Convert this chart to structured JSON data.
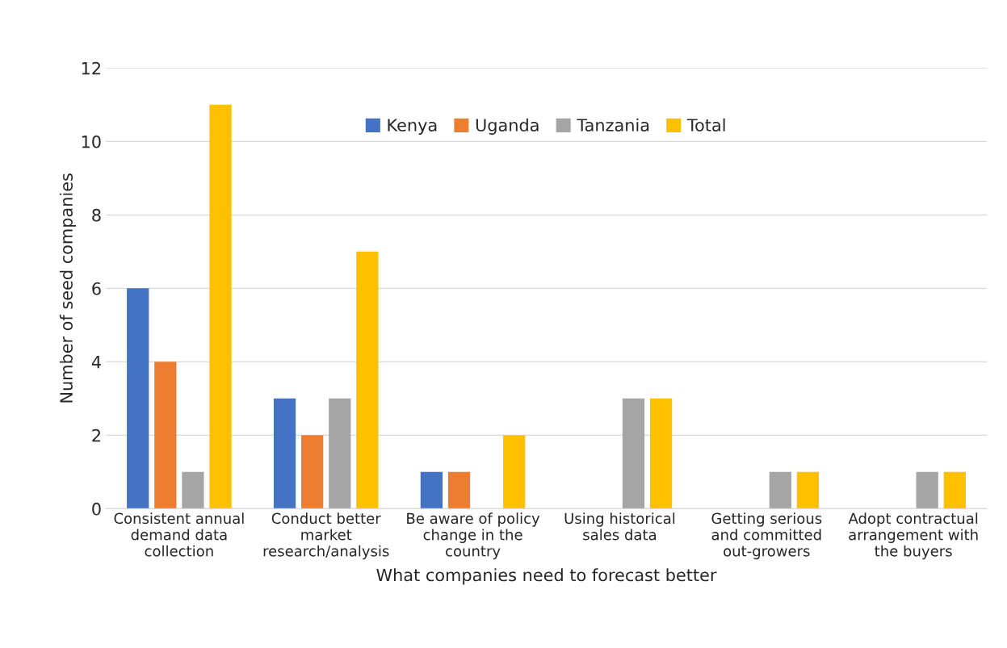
{
  "chart_data": {
    "type": "bar",
    "xlabel": "What companies need to forecast better",
    "ylabel": "Number of seed companies",
    "categories": [
      "Consistent annual\ndemand data\ncollection",
      "Conduct better\nmarket\nresearch/analysis",
      "Be aware of policy\nchange in the\ncountry",
      "Using historical\nsales data",
      "Getting serious\nand committed\nout-growers",
      "Adopt contractual\narrangement with\nthe buyers"
    ],
    "series": [
      {
        "name": "Kenya",
        "color": "#4472c4",
        "values": [
          6,
          3,
          1,
          null,
          null,
          null
        ]
      },
      {
        "name": "Uganda",
        "color": "#ed7d31",
        "values": [
          4,
          2,
          1,
          null,
          null,
          null
        ]
      },
      {
        "name": "Tanzania",
        "color": "#a5a5a5",
        "values": [
          1,
          3,
          null,
          3,
          1,
          1
        ]
      },
      {
        "name": "Total",
        "color": "#ffc000",
        "values": [
          11,
          7,
          2,
          3,
          1,
          1
        ]
      }
    ],
    "ylim": [
      0,
      12
    ],
    "yticks": [
      0,
      2,
      4,
      6,
      8,
      10,
      12
    ],
    "grid": "y",
    "legend": "top"
  }
}
